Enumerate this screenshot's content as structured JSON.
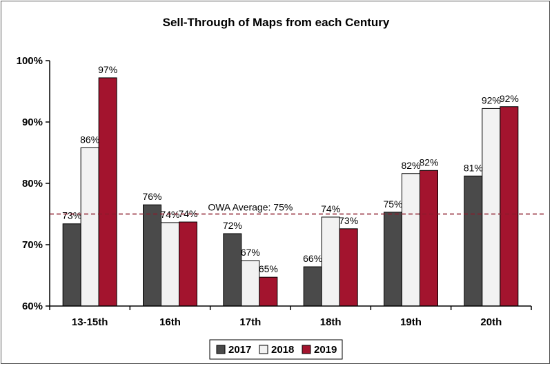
{
  "chart_data": {
    "type": "bar",
    "title": "Sell-Through of Maps from each Century",
    "categories": [
      "13-15th",
      "16th",
      "17th",
      "18th",
      "19th",
      "20th"
    ],
    "series": [
      {
        "name": "2017",
        "color": "#4a4a4a",
        "values": [
          73.4,
          76.5,
          71.8,
          66.4,
          75.3,
          81.2
        ],
        "labels": [
          "73%",
          "76%",
          "72%",
          "66%",
          "75%",
          "81%"
        ]
      },
      {
        "name": "2018",
        "color": "#f2f2f2",
        "values": [
          85.8,
          73.6,
          67.4,
          74.5,
          81.6,
          92.2
        ],
        "labels": [
          "86%",
          "74%",
          "67%",
          "74%",
          "82%",
          "92%"
        ]
      },
      {
        "name": "2019",
        "color": "#a3142e",
        "values": [
          97.2,
          73.7,
          64.7,
          72.6,
          82.1,
          92.5
        ],
        "labels": [
          "97%",
          "74%",
          "65%",
          "73%",
          "82%",
          "92%"
        ]
      }
    ],
    "ylim": [
      60,
      100
    ],
    "yticks": [
      60,
      70,
      80,
      90,
      100
    ],
    "ytick_labels": [
      "60%",
      "70%",
      "80%",
      "90%",
      "100%"
    ],
    "reference_line": {
      "value": 75,
      "label": "OWA Average: 75%",
      "color": "#8b1a2b",
      "style": "dashed"
    },
    "legend": "bottom-center",
    "grid": false
  }
}
